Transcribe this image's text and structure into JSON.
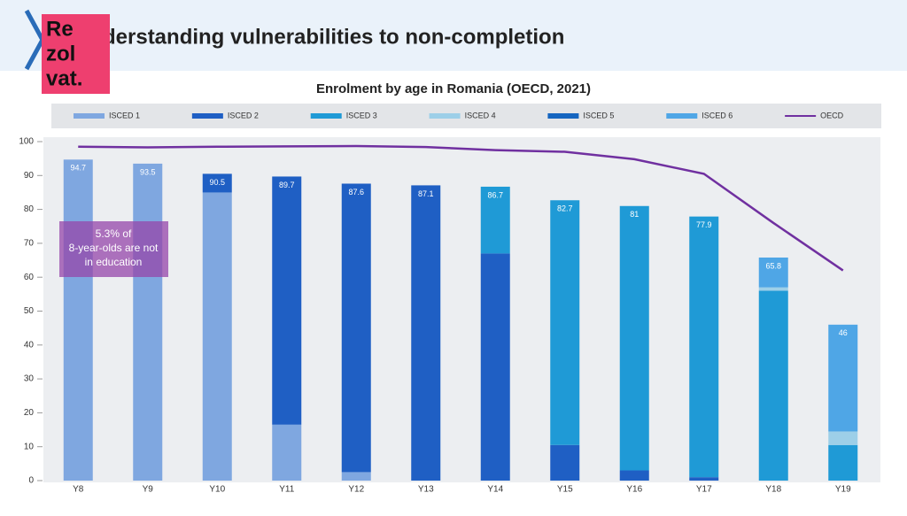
{
  "header": {
    "title": "Understanding vulnerabilities to non-completion",
    "logo": [
      "Re",
      "zol",
      "vat."
    ]
  },
  "chart_data": {
    "type": "stacked_bar",
    "title": "Enrolment by age in Romania (OECD, 2021)",
    "categories": [
      "Y8",
      "Y9",
      "Y10",
      "Y11",
      "Y12",
      "Y13",
      "Y14",
      "Y15",
      "Y16",
      "Y17",
      "Y18",
      "Y19"
    ],
    "series": [
      {
        "name": "ISCED 1",
        "color": "#7fa7e0",
        "values": [
          94.7,
          93.5,
          85,
          16.5,
          2.5,
          null,
          null,
          null,
          null,
          null,
          null,
          null
        ]
      },
      {
        "name": "ISCED 2",
        "color": "#1f5fc4",
        "values": [
          null,
          null,
          5.5,
          73.2,
          85.1,
          87.1,
          67,
          10.5,
          3,
          1,
          null,
          null
        ]
      },
      {
        "name": "ISCED 3",
        "color": "#1f9ad6",
        "values": [
          null,
          null,
          null,
          null,
          null,
          null,
          19.7,
          72.2,
          78,
          76.9,
          56,
          10.5
        ]
      },
      {
        "name": "ISCED 4",
        "color": "#9dcfe8",
        "values": [
          null,
          null,
          null,
          null,
          null,
          null,
          null,
          null,
          null,
          null,
          1,
          4
        ]
      },
      {
        "name": "ISCED 5",
        "color": "#1565c0",
        "values": [
          null,
          null,
          null,
          null,
          null,
          null,
          null,
          null,
          null,
          null,
          null,
          null
        ]
      },
      {
        "name": "ISCED 6",
        "color": "#4fa6e6",
        "values": [
          null,
          null,
          null,
          null,
          null,
          null,
          null,
          null,
          null,
          null,
          8.8,
          31.5
        ]
      },
      {
        "name": "OECD",
        "color": "#7030a0",
        "line": true,
        "values": [
          98.5,
          98.3,
          98.5,
          98.6,
          98.7,
          98.4,
          97.5,
          97,
          94.8,
          90.5,
          76,
          62
        ]
      }
    ],
    "total_labels": [
      94.7,
      93.5,
      90.5,
      89.7,
      87.6,
      87.1,
      86.7,
      82.7,
      81.0,
      77.9,
      65.8,
      46.0
    ],
    "annotation": "5.3% of 8-year-olds are not in education",
    "ylim": [
      0,
      100
    ],
    "yticks": [
      0,
      10,
      20,
      30,
      40,
      50,
      60,
      70,
      80,
      90,
      100
    ]
  }
}
